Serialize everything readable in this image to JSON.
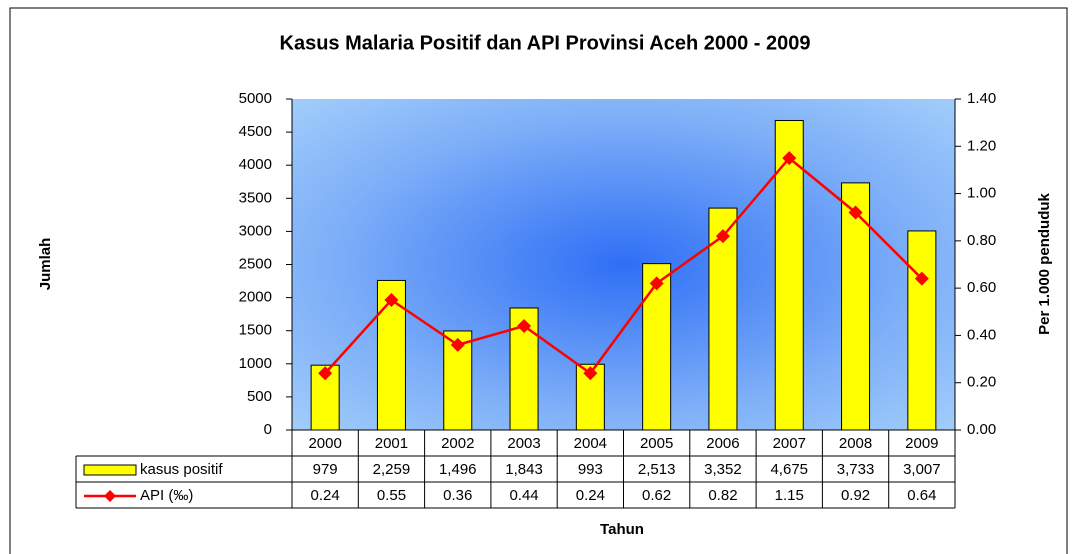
{
  "chart_data": {
    "type": "bar",
    "title": "Kasus Malaria Positif dan API Provinsi Aceh 2000 - 2009",
    "x_label": "Tahun",
    "y_label": "Jumlah",
    "y2_label": "Per 1.000 penduduk",
    "categories": [
      "2000",
      "2001",
      "2002",
      "2003",
      "2004",
      "2005",
      "2006",
      "2007",
      "2008",
      "2009"
    ],
    "series": [
      {
        "name": "kasus positif",
        "color": "#ffff00",
        "values": [
          979,
          2259,
          1496,
          1843,
          993,
          2513,
          3352,
          4675,
          3733,
          3007
        ],
        "value_labels": [
          "979",
          "2,259",
          "1,496",
          "1,843",
          "993",
          "2,513",
          "3,352",
          "4,675",
          "3,733",
          "3,007"
        ]
      },
      {
        "name": "API (‰)",
        "color": "#ff0000",
        "type": "line",
        "axis": "y2",
        "values": [
          0.24,
          0.55,
          0.36,
          0.44,
          0.24,
          0.62,
          0.82,
          1.15,
          0.92,
          0.64
        ]
      }
    ],
    "ylim": [
      0,
      5000
    ],
    "yticks": [
      0,
      500,
      1000,
      1500,
      2000,
      2500,
      3000,
      3500,
      4000,
      4500,
      5000
    ],
    "y2lim": [
      0,
      1.4
    ],
    "y2ticks": [
      {
        "value": 0,
        "label": "0.00"
      },
      {
        "value": 0.2,
        "label": "0.20"
      },
      {
        "value": 0.4,
        "label": "0.40"
      },
      {
        "value": 0.6,
        "label": "0.60"
      },
      {
        "value": 0.8,
        "label": "0.80"
      },
      {
        "value": 1.0,
        "label": "1.00"
      },
      {
        "value": 1.2,
        "label": "1.20"
      },
      {
        "value": 1.4,
        "label": "1.40"
      }
    ]
  }
}
